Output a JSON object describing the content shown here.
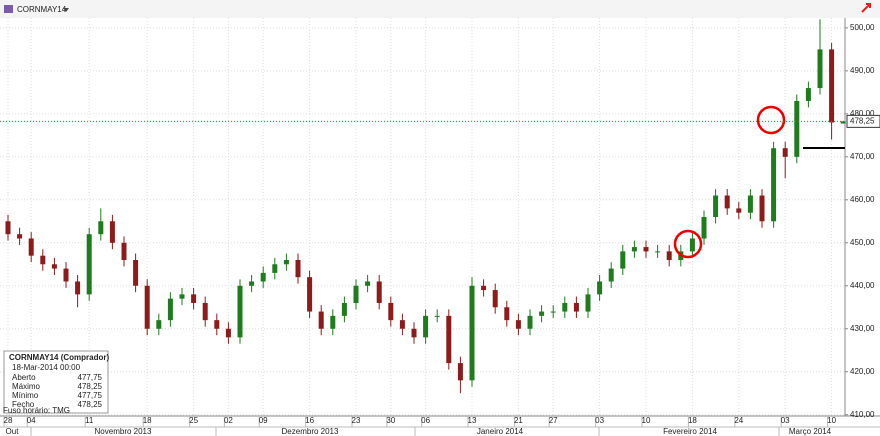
{
  "chart_data": {
    "type": "candlestick",
    "title": "CORNMAY14",
    "categories": [
      "28",
      null,
      "04",
      null,
      null,
      null,
      null,
      "11",
      null,
      null,
      null,
      null,
      "18",
      null,
      null,
      null,
      "25",
      null,
      null,
      "02",
      null,
      null,
      "09",
      null,
      null,
      null,
      "16",
      null,
      null,
      null,
      "23",
      null,
      null,
      "30",
      null,
      null,
      "06",
      null,
      null,
      null,
      "13",
      null,
      null,
      null,
      "21",
      null,
      null,
      "27",
      null,
      null,
      null,
      "03",
      null,
      null,
      null,
      "10",
      null,
      null,
      null,
      "18",
      null,
      null,
      null,
      "24",
      null,
      null,
      null,
      "03",
      null,
      null,
      null,
      "10",
      null
    ],
    "months": [
      "Out",
      "Novembro 2013",
      "Dezembro 2013",
      "Janeiro 2014",
      "Fevereiro 2014",
      "Março 2014"
    ],
    "open": [
      455,
      452,
      451,
      447,
      445,
      444,
      441,
      438,
      452,
      455,
      450,
      446,
      440,
      430,
      432,
      437,
      438,
      436,
      432,
      430,
      428,
      440,
      441,
      443,
      445,
      446,
      442,
      434,
      430,
      433,
      436,
      440,
      441,
      436,
      432,
      430,
      428,
      433,
      433,
      422,
      418,
      440,
      439,
      435,
      432,
      430,
      433,
      434,
      434,
      436,
      434,
      438,
      441,
      444,
      448,
      449,
      448,
      448,
      446,
      448,
      451,
      456,
      461,
      458,
      457,
      461,
      455,
      472,
      470,
      483,
      486,
      495,
      477.75
    ],
    "high": [
      456.5,
      453.5,
      452.5,
      448.5,
      446.5,
      445.5,
      442.5,
      453.5,
      458,
      456.5,
      451.5,
      447.5,
      441.5,
      433.5,
      438.5,
      439.5,
      439.5,
      437.5,
      433.5,
      431.5,
      441.5,
      442.5,
      444.5,
      446.5,
      447.5,
      447.5,
      443.5,
      435.5,
      434.5,
      437.5,
      441.5,
      442.5,
      442.5,
      437.5,
      433.5,
      431.5,
      434.5,
      434.5,
      434.5,
      423.5,
      442,
      441.5,
      440.5,
      436.5,
      433.5,
      434.5,
      435.5,
      435.5,
      437.5,
      437.5,
      439.5,
      442.5,
      445.5,
      449.5,
      450.5,
      450.5,
      449.5,
      449.5,
      449.5,
      452.5,
      457.5,
      462.5,
      462.5,
      459.5,
      462.5,
      462.5,
      473.5,
      473.5,
      484.5,
      487.5,
      502,
      496.5,
      478.25
    ],
    "low": [
      450.5,
      449.5,
      445.5,
      443.5,
      442.5,
      439.5,
      435,
      436.5,
      450.5,
      448.5,
      444.5,
      438.5,
      428.5,
      428.5,
      430.5,
      435.5,
      434.5,
      430.5,
      428.5,
      426.5,
      426.5,
      438.5,
      439.5,
      441.5,
      443.5,
      440.5,
      432.5,
      428.5,
      428.5,
      431.5,
      434.5,
      438.5,
      434.5,
      430.5,
      428.5,
      426.5,
      426.5,
      431.5,
      420.5,
      415,
      416.5,
      437.5,
      433.5,
      430.5,
      428.5,
      428.5,
      431.5,
      432.5,
      432.5,
      432.5,
      432.5,
      436.5,
      439.5,
      442.5,
      446.5,
      446.5,
      446.5,
      444.5,
      444.5,
      446.5,
      449.5,
      454.5,
      456.5,
      455.5,
      455.5,
      453.5,
      453.5,
      465,
      468.5,
      481.5,
      484.5,
      474,
      477.75
    ],
    "close": [
      452,
      451,
      447,
      445,
      444,
      441,
      438,
      452,
      455,
      450,
      446,
      440,
      430,
      432,
      437,
      438,
      436,
      432,
      430,
      428,
      440,
      441,
      443,
      445,
      446,
      442,
      434,
      430,
      433,
      436,
      440,
      441,
      436,
      432,
      430,
      428,
      433,
      433,
      422,
      418,
      440,
      439,
      435,
      432,
      430,
      433,
      434,
      434,
      436,
      434,
      438,
      441,
      444,
      448,
      449,
      448,
      448,
      446,
      448,
      451,
      456,
      461,
      458,
      457,
      461,
      455,
      472,
      470,
      483,
      486,
      495,
      478,
      478.25
    ],
    "up_color": "#1e7b1e",
    "down_color": "#8e1b1b",
    "ylim": [
      409.7,
      502.3
    ],
    "yticks": [
      {
        "value": 410,
        "label": "410,00"
      },
      {
        "value": 420,
        "label": "420,00"
      },
      {
        "value": 430,
        "label": "430,00"
      },
      {
        "value": 440,
        "label": "440,00"
      },
      {
        "value": 450,
        "label": "450,00"
      },
      {
        "value": 460,
        "label": "460,00"
      },
      {
        "value": 470,
        "label": "470,00"
      },
      {
        "value": 480,
        "label": "480,00"
      },
      {
        "value": 490,
        "label": "490,00"
      },
      {
        "value": 500,
        "label": "500,00"
      }
    ],
    "grid": true,
    "last": {
      "value": 478.25,
      "label": "478,25"
    },
    "info": {
      "title": "CORNMAY14 (Comprador)",
      "datetime": "18-Mar-2014 00:00",
      "rows": [
        [
          "Aberto",
          "477,75"
        ],
        [
          "Máximo",
          "478,25"
        ],
        [
          "Mínimo",
          "477,75"
        ],
        [
          "Fecho",
          "478,25"
        ]
      ]
    },
    "timezone": "Fuso horário: TMG"
  }
}
